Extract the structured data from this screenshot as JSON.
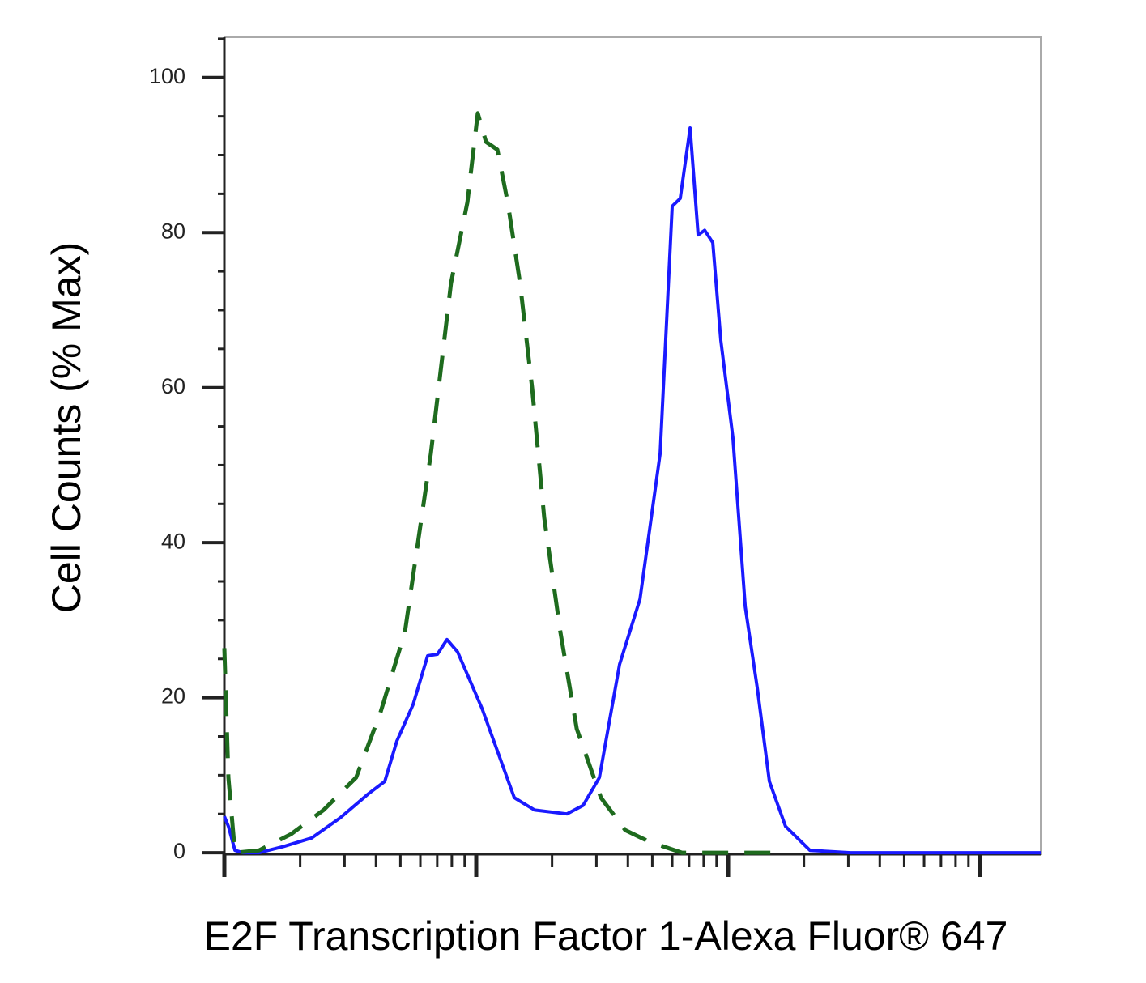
{
  "chart_data": {
    "type": "line",
    "x_label": "E2F Transcription Factor 1-Alexa Fluor® 647",
    "y_label": "Cell Counts (% Max)",
    "xlim": [
      0,
      3.241
    ],
    "xticks": [
      0,
      1,
      2,
      3
    ],
    "xscale": "log-decades",
    "ylim": [
      -0.2,
      105.2
    ],
    "yticks": [
      0,
      20,
      40,
      60,
      80,
      100
    ],
    "y_minor_ticks": [
      5,
      10,
      15,
      25,
      30,
      35,
      45,
      50,
      55,
      65,
      70,
      75,
      85,
      90,
      95,
      105
    ],
    "series": [
      {
        "color": "#1a1aff",
        "style": "solid",
        "x": [
          0,
          0.016,
          0.042,
          0.074,
          0.138,
          0.235,
          0.347,
          0.46,
          0.572,
          0.637,
          0.685,
          0.749,
          0.807,
          0.846,
          0.884,
          0.926,
          1.023,
          1.151,
          1.232,
          1.36,
          1.424,
          1.489,
          1.569,
          1.65,
          1.73,
          1.778,
          1.81,
          1.849,
          1.881,
          1.907,
          1.939,
          1.971,
          2.019,
          2.068,
          2.116,
          2.164,
          2.228,
          2.325,
          2.486,
          2.968,
          3.241
        ],
        "values": [
          4.7,
          3.4,
          0.3,
          0,
          0,
          0.8,
          1.9,
          4.5,
          7.6,
          9.2,
          14.4,
          19.1,
          25.4,
          25.6,
          27.5,
          25.9,
          18.6,
          7.1,
          5.5,
          5.0,
          6.1,
          9.7,
          24.3,
          32.7,
          51.5,
          83.4,
          84.4,
          93.5,
          79.7,
          80.3,
          78.7,
          66.1,
          53.6,
          31.7,
          21.2,
          9.2,
          3.4,
          0.3,
          0,
          0,
          0
        ]
      },
      {
        "color": "#1e6b1e",
        "style": "dashed",
        "x": [
          0,
          0.016,
          0.042,
          0.138,
          0.265,
          0.394,
          0.523,
          0.62,
          0.717,
          0.82,
          0.9,
          0.965,
          1.006,
          1.039,
          1.084,
          1.125,
          1.174,
          1.222,
          1.27,
          1.334,
          1.399,
          1.495,
          1.592,
          1.688,
          1.817,
          2.01,
          2.203
        ],
        "values": [
          26.4,
          9.7,
          0,
          0.3,
          2.4,
          5.5,
          9.7,
          18.1,
          28.5,
          51.5,
          73.5,
          83.9,
          95.4,
          91.7,
          90.7,
          83.9,
          73.5,
          59.9,
          43.2,
          28.5,
          16.0,
          7.1,
          2.9,
          1.4,
          0,
          0,
          0
        ]
      }
    ]
  }
}
